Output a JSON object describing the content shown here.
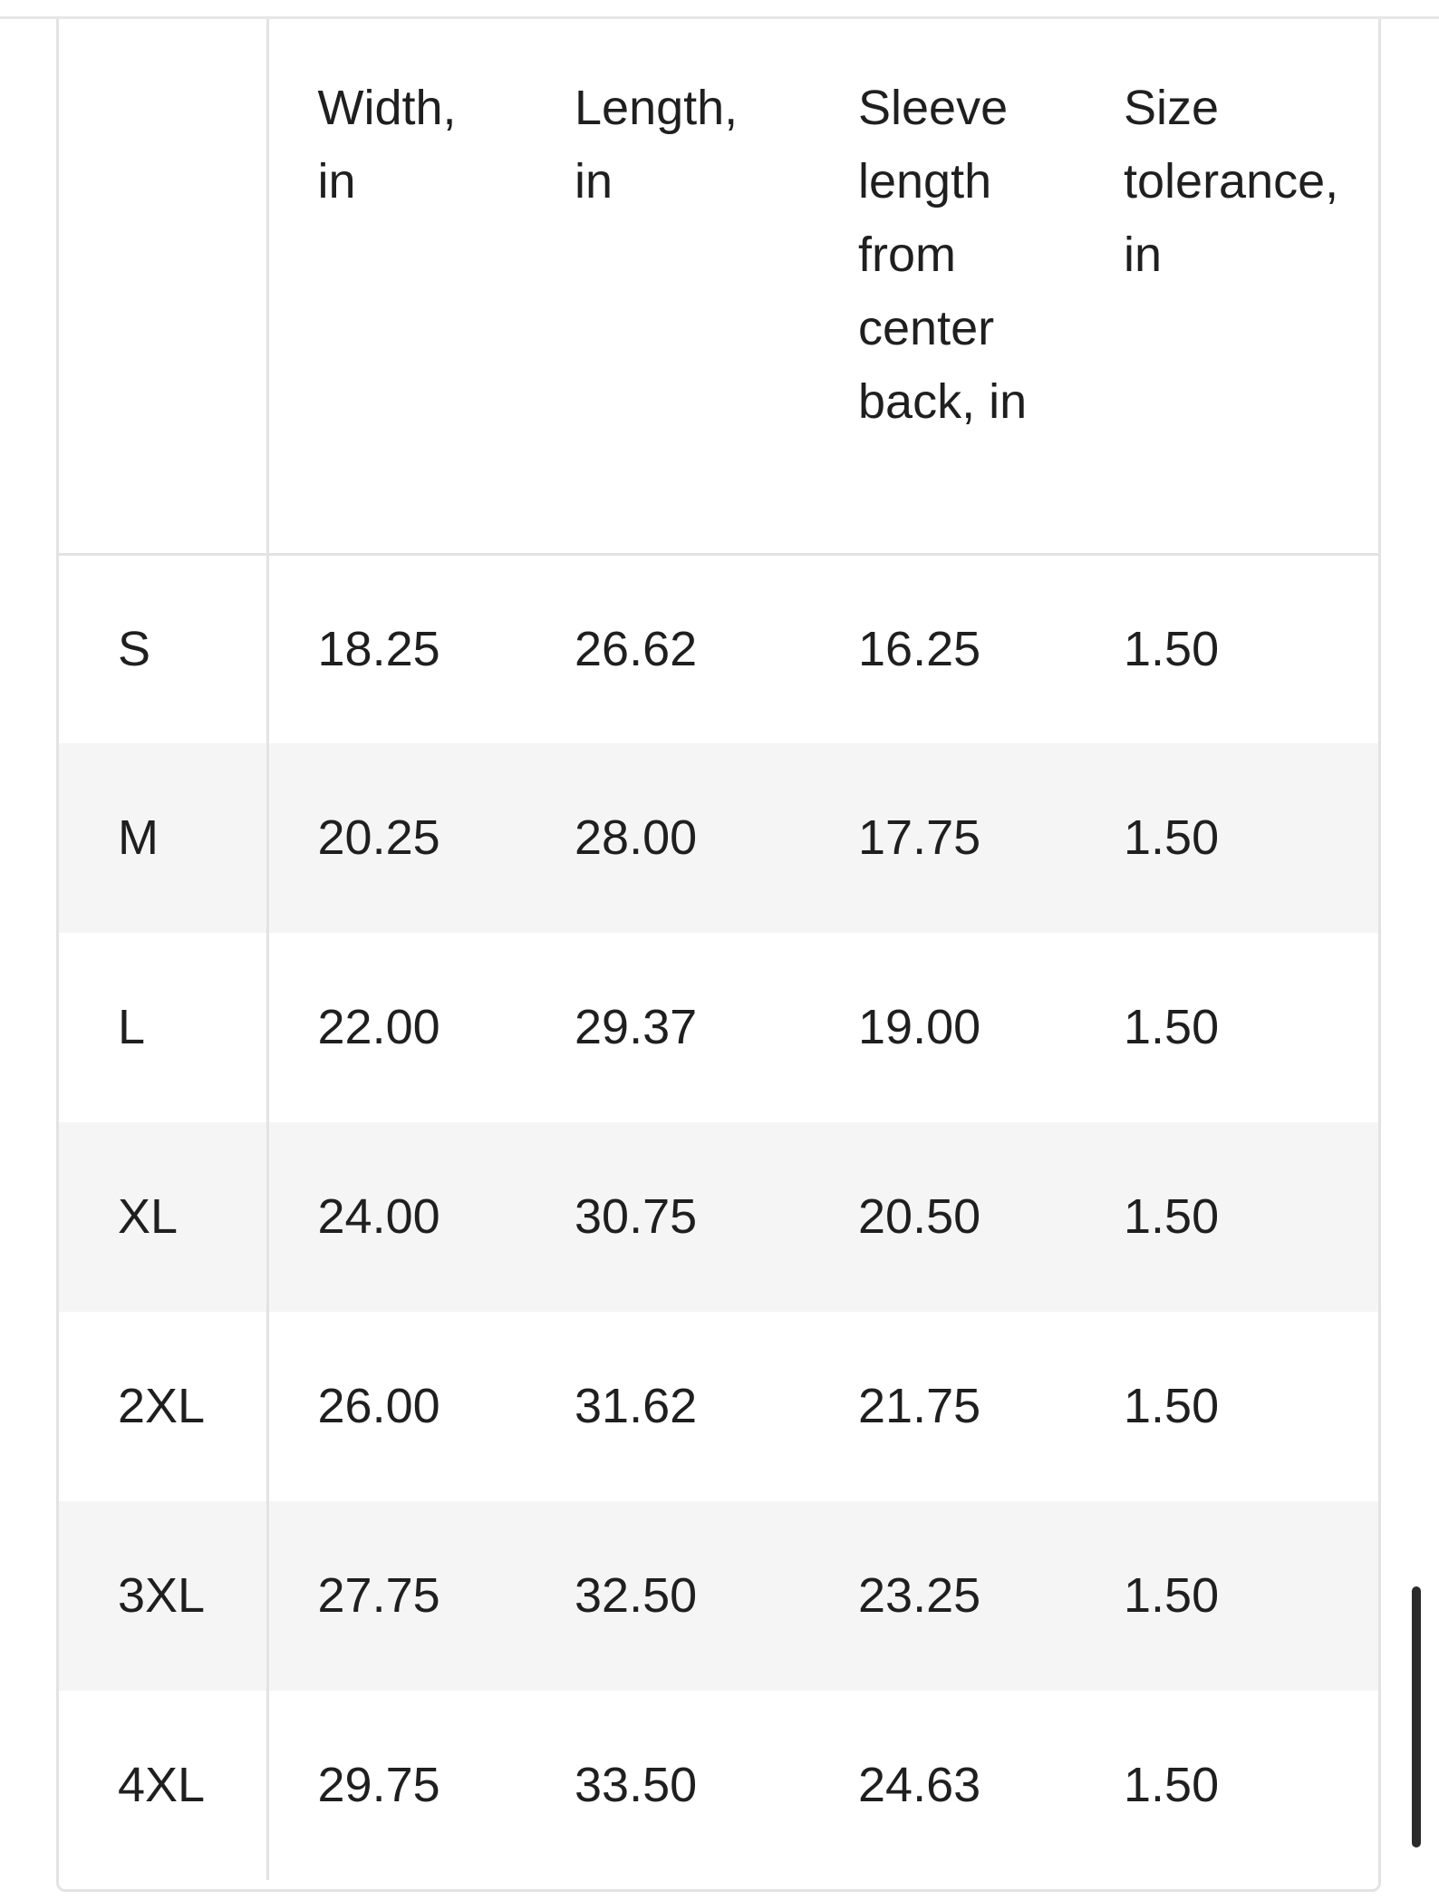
{
  "size_table": {
    "headers": [
      "",
      "Width, in",
      "Length, in",
      "Sleeve length from center back, in",
      "Size tolerance, in"
    ],
    "rows": [
      [
        "S",
        "18.25",
        "26.62",
        "16.25",
        "1.50"
      ],
      [
        "M",
        "20.25",
        "28.00",
        "17.75",
        "1.50"
      ],
      [
        "L",
        "22.00",
        "29.37",
        "19.00",
        "1.50"
      ],
      [
        "XL",
        "24.00",
        "30.75",
        "20.50",
        "1.50"
      ],
      [
        "2XL",
        "26.00",
        "31.62",
        "21.75",
        "1.50"
      ],
      [
        "3XL",
        "27.75",
        "32.50",
        "23.25",
        "1.50"
      ],
      [
        "4XL",
        "29.75",
        "33.50",
        "24.63",
        "1.50"
      ]
    ]
  },
  "colors": {
    "text": "#1f1f1f",
    "border": "#e3e3e3",
    "striped_row": "#f5f5f5",
    "scrollbar": "#2b2b2b"
  }
}
